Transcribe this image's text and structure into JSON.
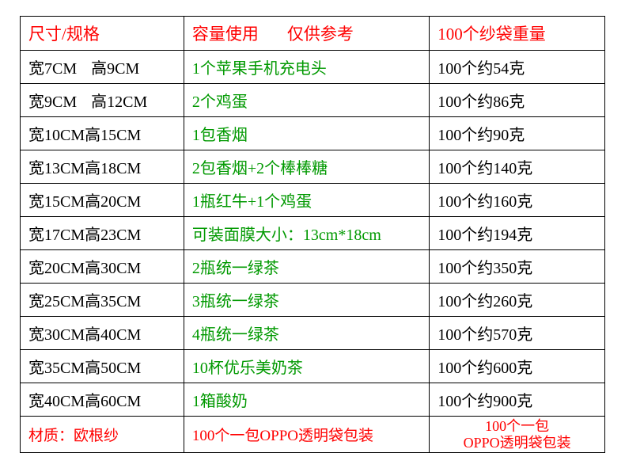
{
  "header": {
    "col1": "尺寸/规格",
    "col2a": "容量使用",
    "col2b": "仅供参考",
    "col3": "100个纱袋重量"
  },
  "rows": [
    {
      "size_w": "宽7CM",
      "size_h": "高9CM",
      "cap": "1个苹果手机充电头",
      "weight": "100个约54克"
    },
    {
      "size_w": "宽9CM",
      "size_h": "高12CM",
      "cap": "2个鸡蛋",
      "weight": "100个约86克"
    },
    {
      "size_w": "宽10CM",
      "size_h": "高15CM",
      "cap": "1包香烟",
      "weight": "100个约90克"
    },
    {
      "size_w": "宽13CM",
      "size_h": "高18CM",
      "cap": "2包香烟+2个棒棒糖",
      "weight": "100个约140克"
    },
    {
      "size_w": "宽15CM",
      "size_h": "高20CM",
      "cap": "1瓶红牛+1个鸡蛋",
      "weight": "100个约160克"
    },
    {
      "size_w": "宽17CM",
      "size_h": "高23CM",
      "cap": "可装面膜大小：13cm*18cm",
      "weight": "100个约194克"
    },
    {
      "size_w": "宽20CM",
      "size_h": "高30CM",
      "cap": "2瓶统一绿茶",
      "weight": "100个约350克"
    },
    {
      "size_w": "宽25CM",
      "size_h": "高35CM",
      "cap": "3瓶统一绿茶",
      "weight": "100个约260克"
    },
    {
      "size_w": "宽30CM",
      "size_h": "高40CM",
      "cap": "4瓶统一绿茶",
      "weight": "100个约570克"
    },
    {
      "size_w": "宽35CM",
      "size_h": "高50CM",
      "cap": "10杯优乐美奶茶",
      "weight": "100个约600克"
    },
    {
      "size_w": "宽40CM",
      "size_h": "高60CM",
      "cap": "1箱酸奶",
      "weight": "100个约900克"
    }
  ],
  "footer": {
    "col1": "材质：欧根纱",
    "col2": "100个一包OPPO透明袋包装",
    "col3_line1": "100个一包",
    "col3_line2": "OPPO透明袋包装"
  },
  "colors": {
    "red": "#ff0000",
    "green": "#009900",
    "black": "#000000",
    "border": "#000000",
    "background": "#ffffff"
  }
}
